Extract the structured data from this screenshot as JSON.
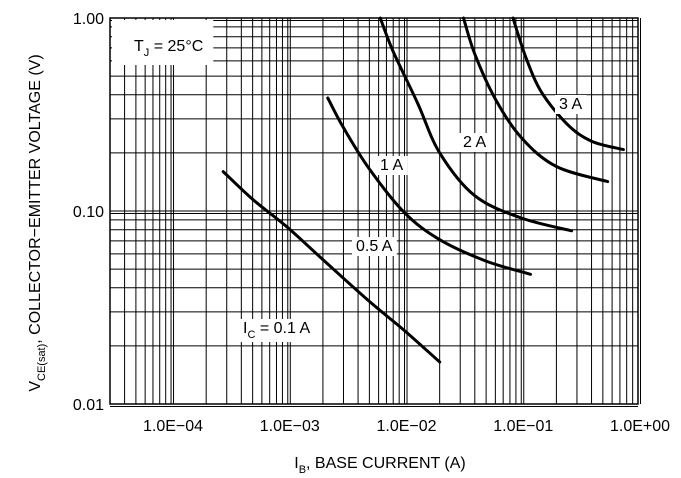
{
  "chart_data": {
    "type": "line",
    "xscale": "log",
    "yscale": "log",
    "xlim": [
      3e-05,
      1.0
    ],
    "ylim": [
      0.01,
      1.0
    ],
    "grid": true,
    "xlabel": {
      "sym": "I",
      "sub": "B",
      "text": ", BASE CURRENT (A)"
    },
    "ylabel": {
      "sym": "V",
      "sub": "CE(sat)",
      "text": ", COLLECTOR−EMITTER VOLTAGE (V)"
    },
    "x_ticks": [
      {
        "value": 0.0001,
        "label": "1.0E−04"
      },
      {
        "value": 0.001,
        "label": "1.0E−03"
      },
      {
        "value": 0.01,
        "label": "1.0E−02"
      },
      {
        "value": 0.1,
        "label": "1.0E−01"
      },
      {
        "value": 1.0,
        "label": "1.0E+00"
      }
    ],
    "y_ticks": [
      {
        "value": 1.0,
        "label": "1.00"
      },
      {
        "value": 0.1,
        "label": "0.10"
      },
      {
        "value": 0.01,
        "label": "0.01"
      }
    ],
    "annotation": {
      "sym": "T",
      "sub": "J",
      "text": " = 25°C"
    },
    "series": [
      {
        "name": "I_C = 0.1 A",
        "label": {
          "sym": "I",
          "sub": "C",
          "text": " = 0.1 A"
        },
        "x": [
          0.00028,
          0.0005,
          0.001,
          0.002,
          0.005,
          0.01,
          0.02
        ],
        "y": [
          0.16,
          0.115,
          0.082,
          0.056,
          0.034,
          0.024,
          0.0165
        ]
      },
      {
        "name": "0.5 A",
        "label": {
          "sym": "",
          "sub": "",
          "text": "0.5 A"
        },
        "x": [
          0.0022,
          0.003,
          0.005,
          0.01,
          0.02,
          0.05,
          0.12
        ],
        "y": [
          0.385,
          0.27,
          0.165,
          0.098,
          0.071,
          0.055,
          0.047
        ]
      },
      {
        "name": "1 A",
        "label": {
          "sym": "",
          "sub": "",
          "text": "1 A"
        },
        "x": [
          0.0062,
          0.008,
          0.013,
          0.02,
          0.04,
          0.1,
          0.27
        ],
        "y": [
          1.0,
          0.67,
          0.36,
          0.2,
          0.12,
          0.092,
          0.079
        ]
      },
      {
        "name": "2 A",
        "label": {
          "sym": "",
          "sub": "",
          "text": "2 A"
        },
        "x": [
          0.032,
          0.04,
          0.06,
          0.1,
          0.2,
          0.55
        ],
        "y": [
          1.0,
          0.65,
          0.38,
          0.24,
          0.17,
          0.142
        ]
      },
      {
        "name": "3 A",
        "label": {
          "sym": "",
          "sub": "",
          "text": "3 A"
        },
        "x": [
          0.085,
          0.11,
          0.15,
          0.25,
          0.4,
          0.75
        ],
        "y": [
          1.0,
          0.62,
          0.41,
          0.28,
          0.23,
          0.208
        ]
      }
    ]
  }
}
